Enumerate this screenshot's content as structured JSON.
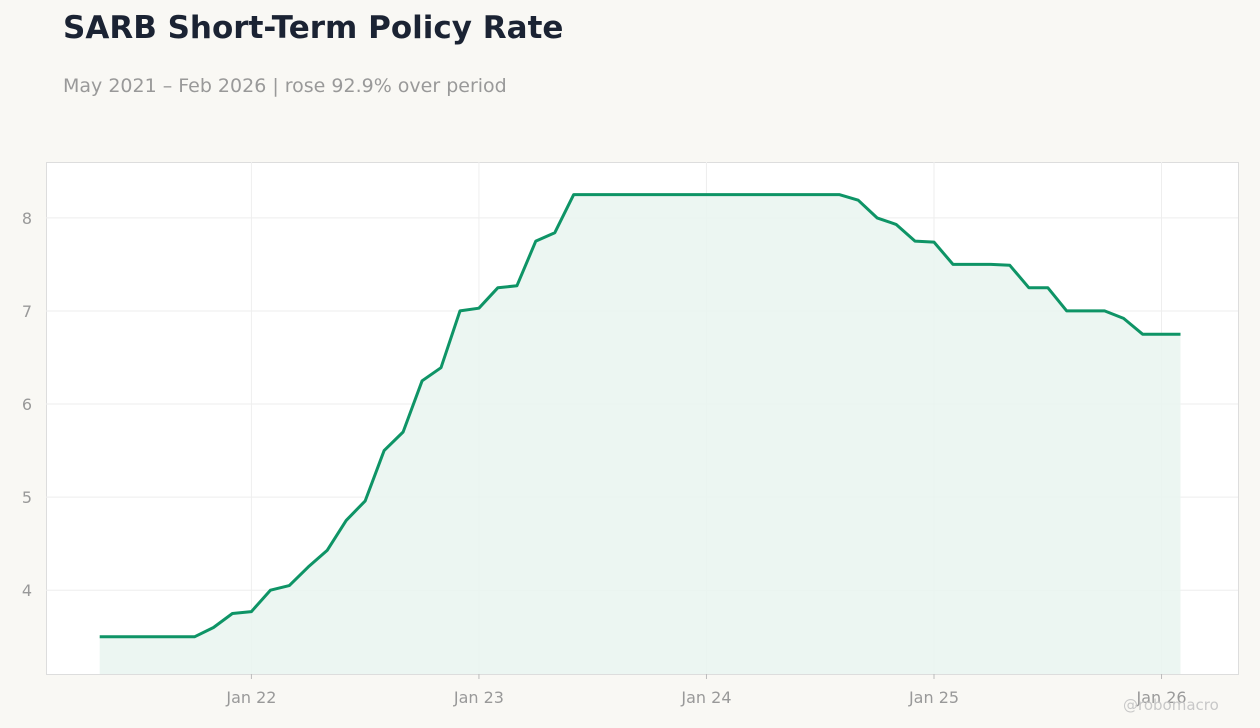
{
  "header": {
    "title": "SARB Short-Term Policy Rate",
    "subtitle": "May 2021 – Feb 2026 | rose 92.9% over period"
  },
  "credit": "@robomacro",
  "colors": {
    "line": "#0e9466",
    "fill": "#e9f5f0",
    "grid": "#eeeeee",
    "plot_bg": "#ffffff",
    "plot_border": "#dddddd"
  },
  "chart_data": {
    "type": "area",
    "x_axis": {
      "type": "time",
      "ticks": [
        "Jan 22",
        "Jan 23",
        "Jan 24",
        "Jan 25",
        "Jan 26"
      ],
      "range": [
        "2021-02-06",
        "2026-05-02"
      ]
    },
    "y_axis": {
      "ticks": [
        4,
        5,
        6,
        7,
        8
      ],
      "range": [
        3.1,
        8.6
      ]
    },
    "grid": true,
    "legend": "none",
    "x": [
      "2021-05",
      "2021-06",
      "2021-07",
      "2021-08",
      "2021-09",
      "2021-10",
      "2021-11",
      "2021-12",
      "2022-01",
      "2022-02",
      "2022-03",
      "2022-04",
      "2022-05",
      "2022-06",
      "2022-07",
      "2022-08",
      "2022-09",
      "2022-10",
      "2022-11",
      "2022-12",
      "2023-01",
      "2023-02",
      "2023-03",
      "2023-04",
      "2023-05",
      "2023-06",
      "2023-07",
      "2023-08",
      "2023-09",
      "2023-10",
      "2023-11",
      "2023-12",
      "2024-01",
      "2024-02",
      "2024-03",
      "2024-04",
      "2024-05",
      "2024-06",
      "2024-07",
      "2024-08",
      "2024-09",
      "2024-10",
      "2024-11",
      "2024-12",
      "2025-01",
      "2025-02",
      "2025-03",
      "2025-04",
      "2025-05",
      "2025-06",
      "2025-07",
      "2025-08",
      "2025-09",
      "2025-10",
      "2025-11",
      "2025-12",
      "2026-01",
      "2026-02"
    ],
    "values": [
      3.5,
      3.5,
      3.5,
      3.5,
      3.5,
      3.5,
      3.6,
      3.75,
      3.77,
      4.0,
      4.05,
      4.25,
      4.43,
      4.75,
      4.96,
      5.5,
      5.7,
      6.25,
      6.39,
      7.0,
      7.03,
      7.25,
      7.27,
      7.75,
      7.84,
      8.25,
      8.25,
      8.25,
      8.25,
      8.25,
      8.25,
      8.25,
      8.25,
      8.25,
      8.25,
      8.25,
      8.25,
      8.25,
      8.25,
      8.25,
      8.19,
      8.0,
      7.93,
      7.75,
      7.74,
      7.5,
      7.5,
      7.5,
      7.49,
      7.25,
      7.25,
      7.0,
      7.0,
      7.0,
      6.92,
      6.75,
      6.75,
      6.75
    ]
  }
}
